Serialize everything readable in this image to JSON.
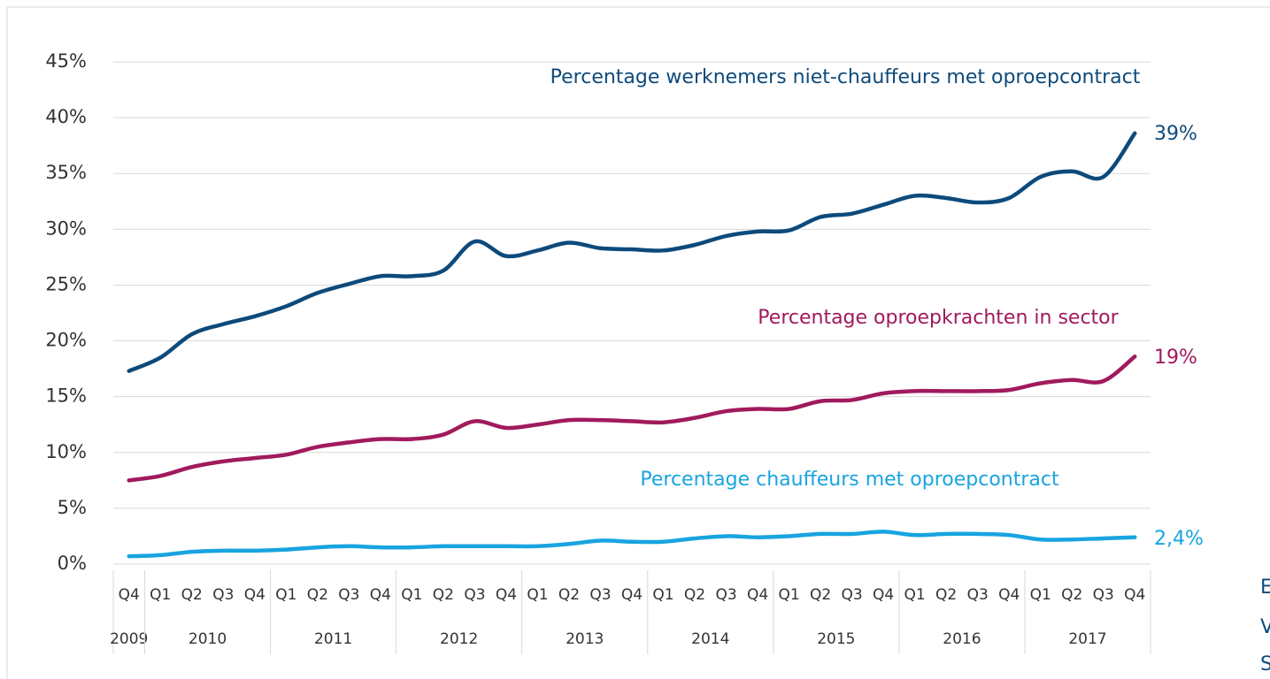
{
  "chart_data": {
    "type": "line",
    "categories": [
      "Q4",
      "Q1",
      "Q2",
      "Q3",
      "Q4",
      "Q1",
      "Q2",
      "Q3",
      "Q4",
      "Q1",
      "Q2",
      "Q3",
      "Q4",
      "Q1",
      "Q2",
      "Q3",
      "Q4",
      "Q1",
      "Q2",
      "Q3",
      "Q4",
      "Q1",
      "Q2",
      "Q3",
      "Q4",
      "Q1",
      "Q2",
      "Q3",
      "Q4",
      "Q1",
      "Q2",
      "Q3",
      "Q4"
    ],
    "years": [
      "2009",
      "2010",
      "2011",
      "2012",
      "2013",
      "2014",
      "2015",
      "2016",
      "2017"
    ],
    "series": [
      {
        "name": "Percentage werknemers niet-chauffeurs met oproepcontract",
        "color": "#0d4a7b",
        "end_label": "39%",
        "values": [
          17.3,
          18.5,
          20.6,
          21.5,
          22.2,
          23.1,
          24.3,
          25.1,
          25.8,
          25.8,
          26.3,
          28.9,
          27.6,
          28.1,
          28.8,
          28.3,
          28.2,
          28.1,
          28.6,
          29.4,
          29.8,
          29.9,
          31.1,
          31.4,
          32.2,
          33.0,
          32.8,
          32.4,
          32.8,
          34.7,
          35.2,
          34.7,
          38.6
        ]
      },
      {
        "name": "Percentage oproepkrachten in sector",
        "color": "#a01a5c",
        "end_label": "19%",
        "values": [
          7.5,
          7.9,
          8.7,
          9.2,
          9.5,
          9.8,
          10.5,
          10.9,
          11.2,
          11.2,
          11.6,
          12.8,
          12.2,
          12.5,
          12.9,
          12.9,
          12.8,
          12.7,
          13.1,
          13.7,
          13.9,
          13.9,
          14.6,
          14.7,
          15.3,
          15.5,
          15.5,
          15.5,
          15.6,
          16.2,
          16.5,
          16.4,
          18.6
        ]
      },
      {
        "name": "Percentage chauffeurs met oproepcontract",
        "color": "#18a4e0",
        "end_label": "2,4%",
        "values": [
          0.7,
          0.8,
          1.1,
          1.2,
          1.2,
          1.3,
          1.5,
          1.6,
          1.5,
          1.5,
          1.6,
          1.6,
          1.6,
          1.6,
          1.8,
          2.1,
          2.0,
          2.0,
          2.3,
          2.5,
          2.4,
          2.5,
          2.7,
          2.7,
          2.9,
          2.6,
          2.7,
          2.7,
          2.6,
          2.2,
          2.2,
          2.3,
          2.4
        ]
      }
    ],
    "ylim": [
      0,
      45
    ],
    "yticks": [
      {
        "value": 0,
        "label": "0%"
      },
      {
        "value": 5,
        "label": "5%"
      },
      {
        "value": 10,
        "label": "10%"
      },
      {
        "value": 15,
        "label": "15%"
      },
      {
        "value": 20,
        "label": "20%"
      },
      {
        "value": 25,
        "label": "25%"
      },
      {
        "value": 30,
        "label": "30%"
      },
      {
        "value": 35,
        "label": "35%"
      },
      {
        "value": 40,
        "label": "40%"
      },
      {
        "value": 45,
        "label": "45%"
      }
    ],
    "grid": true,
    "side_note": [
      "E",
      "V",
      "S"
    ]
  }
}
